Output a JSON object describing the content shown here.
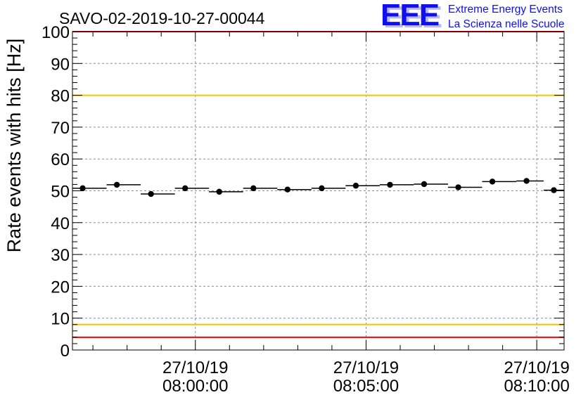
{
  "chart_data": {
    "type": "scatter",
    "title": "SAVO-02-2019-10-27-00044",
    "xlabel": "",
    "ylabel": "Rate events with hits [Hz]",
    "ylim": [
      0,
      100
    ],
    "yticks": [
      0,
      10,
      20,
      30,
      40,
      50,
      60,
      70,
      80,
      90,
      100
    ],
    "xlim_minutes": [
      -3.6,
      10.8
    ],
    "grid": true,
    "xtick_labels": [
      {
        "minute": 0,
        "date": "27/10/19",
        "time": "08:00:00"
      },
      {
        "minute": 5,
        "date": "27/10/19",
        "time": "08:05:00"
      },
      {
        "minute": 10,
        "date": "27/10/19",
        "time": "08:10:00"
      }
    ],
    "bin_width_minutes": 1,
    "series": [
      {
        "name": "rate",
        "x_minutes": [
          -3.3,
          -2.3,
          -1.3,
          -0.3,
          0.7,
          1.7,
          2.7,
          3.7,
          4.7,
          5.7,
          6.7,
          7.7,
          8.7,
          9.7,
          10.5
        ],
        "values": [
          50.8,
          51.9,
          49.0,
          50.8,
          49.7,
          50.8,
          50.4,
          50.8,
          51.6,
          51.9,
          52.1,
          51.1,
          52.9,
          53.1,
          50.2
        ],
        "bin_lo_minutes": [
          -3.6,
          -2.6,
          -1.6,
          -0.6,
          0.4,
          1.4,
          2.4,
          3.4,
          4.4,
          5.4,
          6.4,
          7.4,
          8.4,
          9.4,
          10.2
        ],
        "bin_hi_minutes": [
          -2.6,
          -1.6,
          -0.6,
          0.4,
          1.4,
          2.4,
          3.4,
          4.4,
          5.4,
          6.4,
          7.4,
          8.4,
          9.4,
          10.2,
          10.8
        ]
      }
    ],
    "threshold_lines": [
      {
        "name": "upper-red",
        "value": 100,
        "color": "#ff0000"
      },
      {
        "name": "upper-yellow",
        "value": 80,
        "color": "#f5c400"
      },
      {
        "name": "lower-yellow",
        "value": 8,
        "color": "#f5c400"
      },
      {
        "name": "lower-red",
        "value": 4,
        "color": "#ff0000"
      }
    ]
  },
  "logo": {
    "text": "EEE",
    "line1": "Extreme Energy Events",
    "line2": "La Scienza nelle Scuole",
    "color": "#1010ee"
  }
}
